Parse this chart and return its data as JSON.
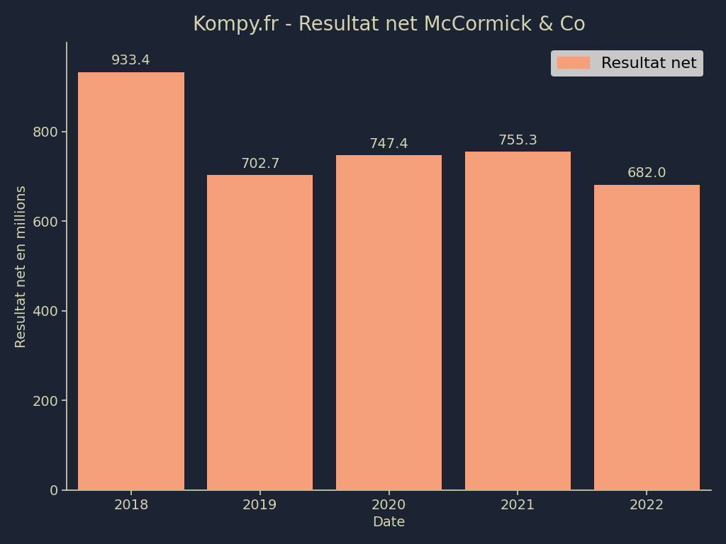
{
  "title": "Kompy.fr - Resultat net McCormick & Co",
  "xlabel": "Date",
  "ylabel": "Resultat net en millions",
  "categories": [
    "2018",
    "2019",
    "2020",
    "2021",
    "2022"
  ],
  "values": [
    933.4,
    702.7,
    747.4,
    755.3,
    682.0
  ],
  "bar_color": "#F5A07A",
  "background_color": "#1c2333",
  "plot_background_color": "#1c2333",
  "axes_edge_color": "#d4d4b0",
  "text_color": "#d4d4b0",
  "legend_label": "Resultat net",
  "legend_facecolor": "#c8c8c8",
  "ylim": [
    0,
    1000
  ],
  "yticks": [
    0,
    200,
    400,
    600,
    800
  ],
  "title_fontsize": 20,
  "label_fontsize": 14,
  "tick_fontsize": 14,
  "annot_fontsize": 14,
  "bar_width": 0.82
}
